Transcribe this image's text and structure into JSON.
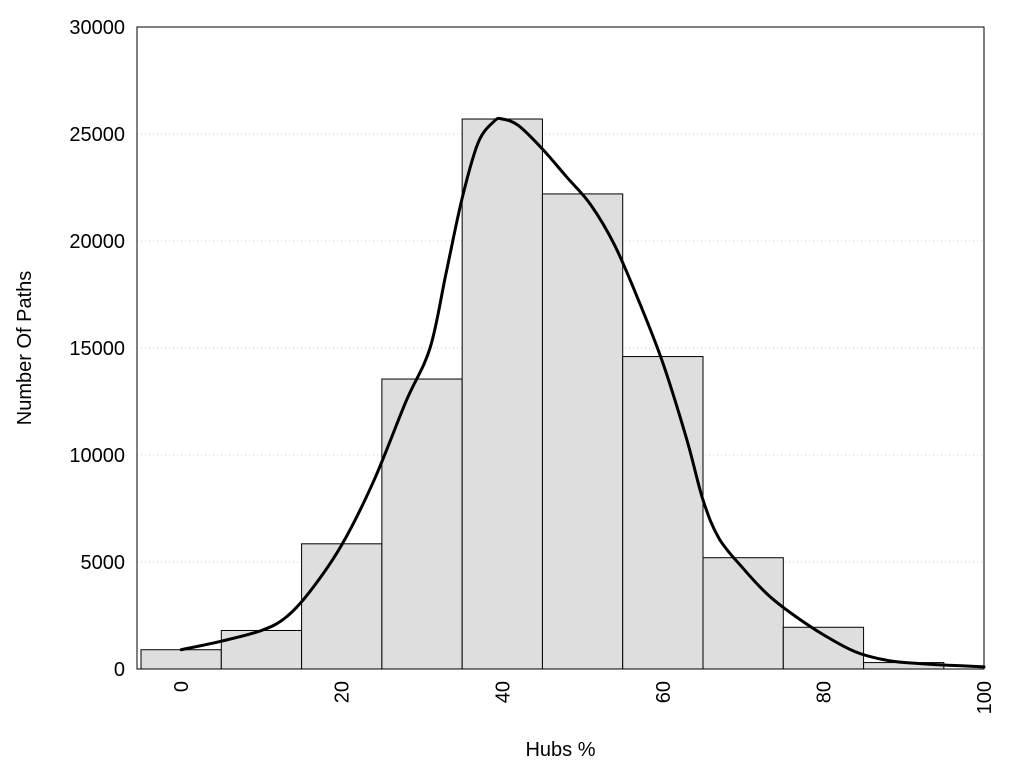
{
  "chart_data": {
    "type": "bar",
    "title": "",
    "xlabel": "Hubs %",
    "ylabel": "Number Of Paths",
    "xlim": [
      -5.5,
      100
    ],
    "ylim": [
      0,
      30000
    ],
    "x_ticks": [
      0,
      20,
      40,
      60,
      80,
      100
    ],
    "y_ticks": [
      0,
      5000,
      10000,
      15000,
      20000,
      25000,
      30000
    ],
    "grid": "horizontal-dotted",
    "bar_color": "#dedede",
    "bins": [
      {
        "center": 0,
        "value": 900
      },
      {
        "center": 10,
        "value": 1800
      },
      {
        "center": 20,
        "value": 5850
      },
      {
        "center": 30,
        "value": 13550
      },
      {
        "center": 40,
        "value": 25700
      },
      {
        "center": 50,
        "value": 22200
      },
      {
        "center": 60,
        "value": 14600
      },
      {
        "center": 70,
        "value": 5200
      },
      {
        "center": 80,
        "value": 1950
      },
      {
        "center": 90,
        "value": 300
      },
      {
        "center": 100,
        "value": 0
      }
    ],
    "bin_width": 10,
    "density_curve": {
      "name": "",
      "x": [
        0,
        5,
        10,
        13,
        16,
        20,
        24,
        28,
        31,
        33,
        35,
        37,
        39,
        40,
        42,
        45,
        48,
        51,
        54,
        57,
        60,
        63,
        65,
        67,
        70,
        73,
        76,
        80,
        84,
        88,
        92,
        96,
        100
      ],
      "y": [
        900,
        1300,
        1800,
        2400,
        3600,
        5800,
        8800,
        12500,
        15000,
        18500,
        22000,
        24600,
        25600,
        25700,
        25400,
        24300,
        23000,
        21700,
        19800,
        17200,
        14300,
        10700,
        7900,
        6100,
        4700,
        3500,
        2600,
        1600,
        800,
        400,
        250,
        170,
        100
      ]
    }
  }
}
